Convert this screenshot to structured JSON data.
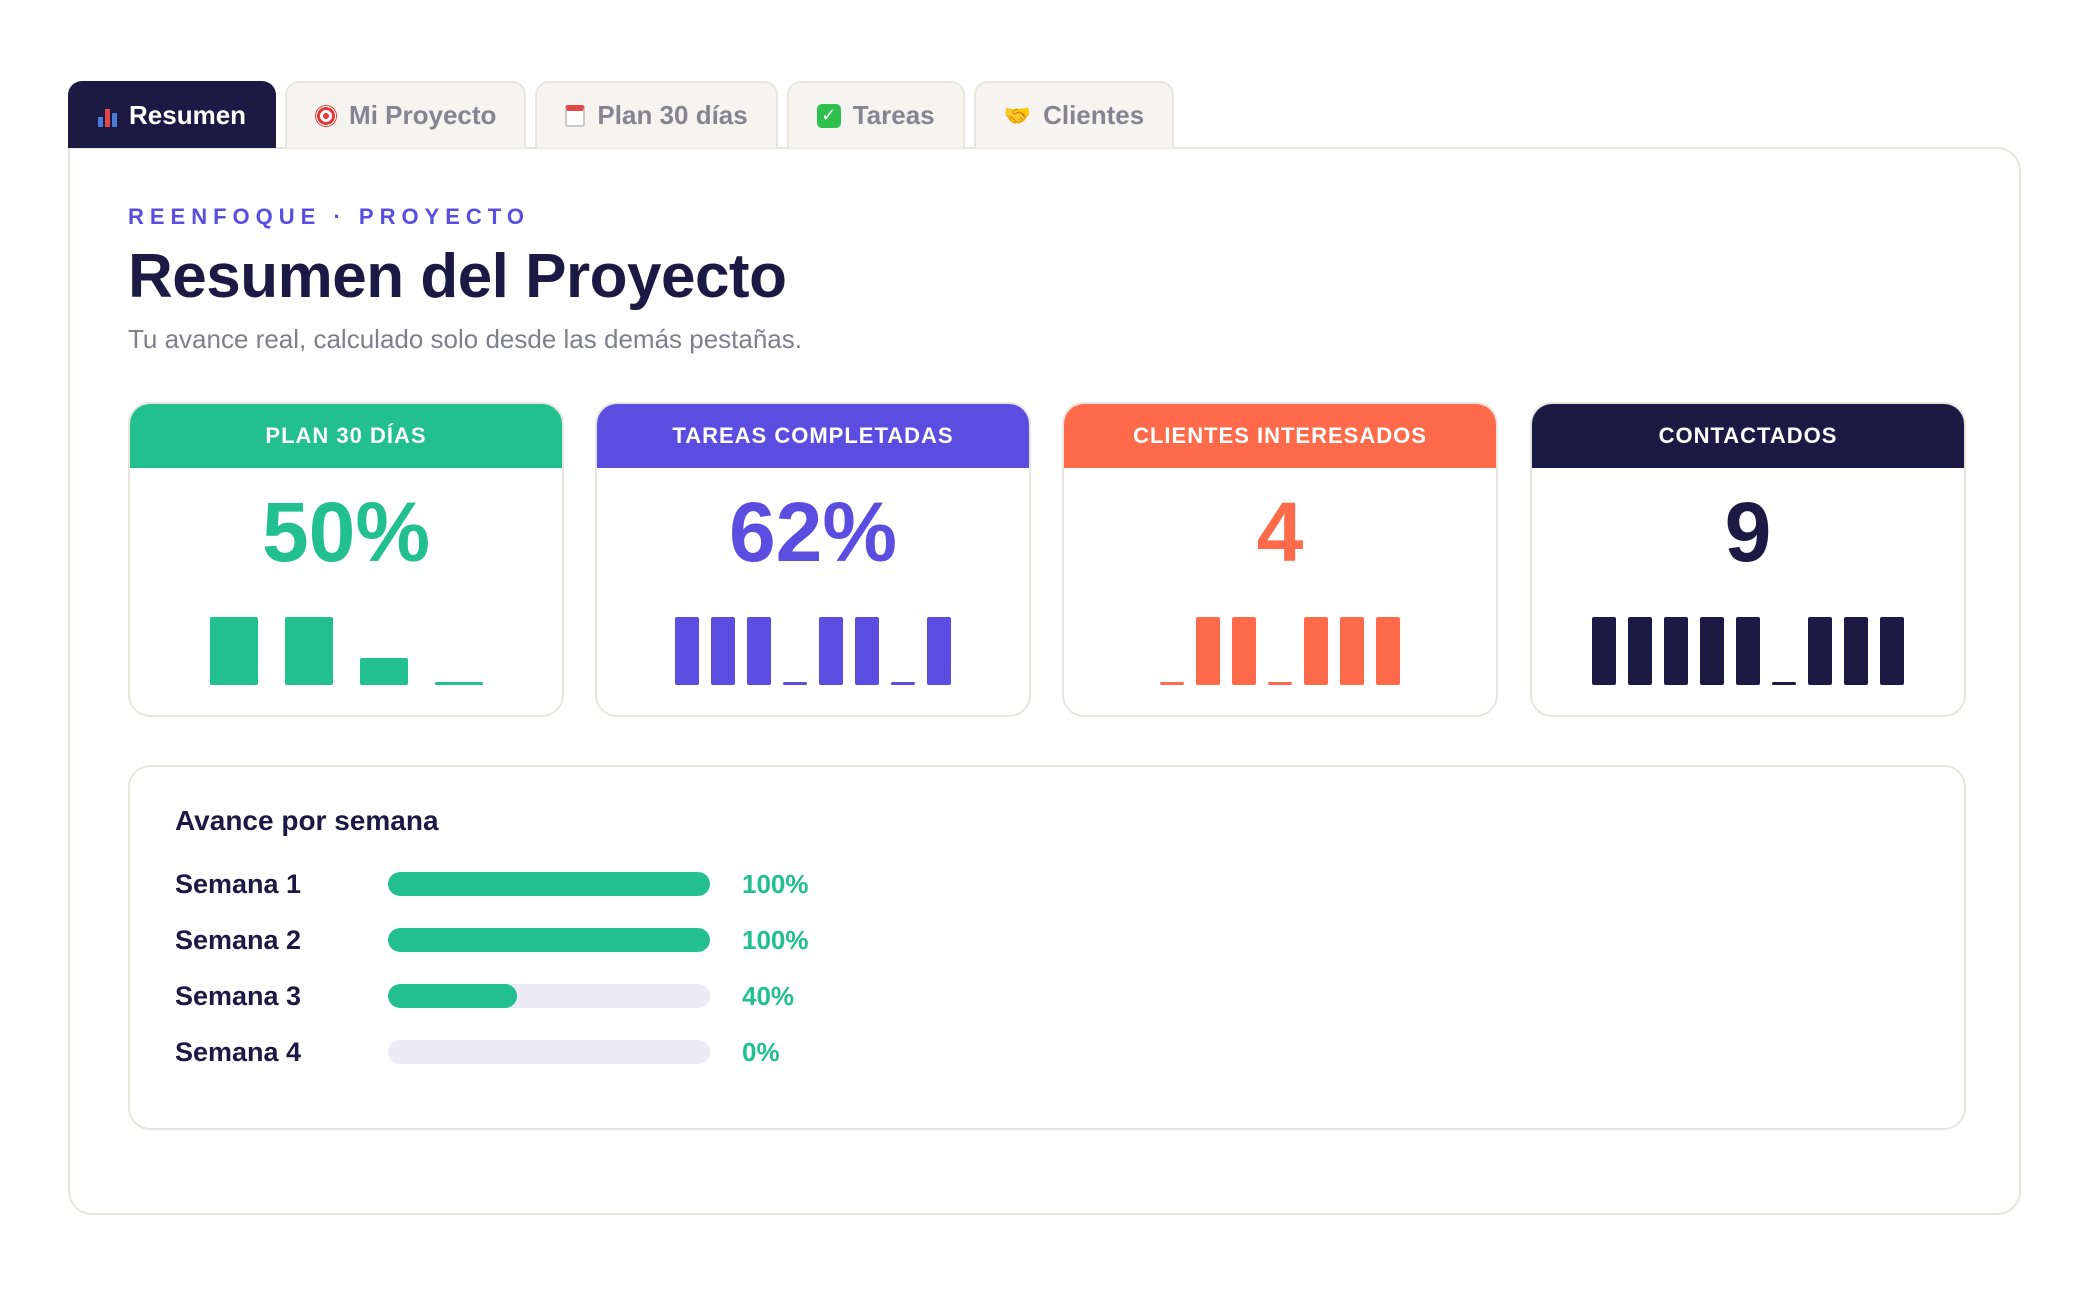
{
  "tabs": [
    {
      "label": "Resumen",
      "icon": "bar-chart-icon",
      "active": true
    },
    {
      "label": "Mi Proyecto",
      "icon": "target-icon",
      "active": false
    },
    {
      "label": "Plan 30 días",
      "icon": "calendar-icon",
      "active": false
    },
    {
      "label": "Tareas",
      "icon": "check-icon",
      "active": false
    },
    {
      "label": "Clientes",
      "icon": "handshake-icon",
      "active": false
    }
  ],
  "header": {
    "eyebrow": "REENFOQUE · PROYECTO",
    "title": "Resumen del Proyecto",
    "subtitle": "Tu avance real, calculado solo desde las demás pestañas."
  },
  "cards": [
    {
      "title": "PLAN 30 DÍAS",
      "value": "50%",
      "color": "#21c08e",
      "bars": [
        1,
        1,
        0.4,
        0
      ]
    },
    {
      "title": "TAREAS COMPLETADAS",
      "value": "62%",
      "color": "#5b4de0",
      "bars": [
        1,
        1,
        1,
        0,
        1,
        1,
        0,
        1
      ]
    },
    {
      "title": "CLIENTES INTERESADOS",
      "value": "4",
      "color": "#ff6b4a",
      "bars": [
        0,
        1,
        1,
        0,
        1,
        1,
        1
      ]
    },
    {
      "title": "CONTACTADOS",
      "value": "9",
      "color": "#1c1a45",
      "bars": [
        1,
        1,
        1,
        1,
        1,
        0,
        1,
        1,
        1
      ]
    }
  ],
  "weekly": {
    "title": "Avance por semana",
    "weeks": [
      {
        "label": "Semana 1",
        "pct_label": "100%",
        "progress": 1.0
      },
      {
        "label": "Semana 2",
        "pct_label": "100%",
        "progress": 1.0
      },
      {
        "label": "Semana 3",
        "pct_label": "40%",
        "progress": 0.4
      },
      {
        "label": "Semana 4",
        "pct_label": "0%",
        "progress": 0.0
      }
    ]
  }
}
